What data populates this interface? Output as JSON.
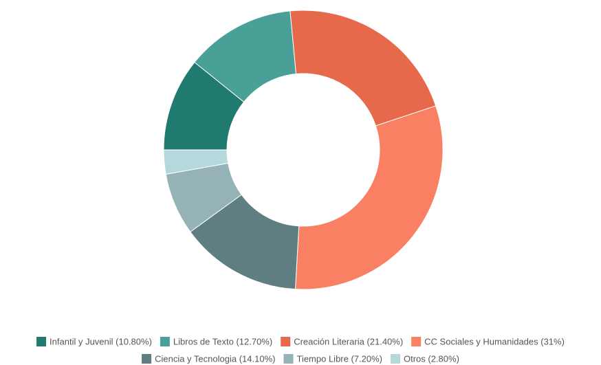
{
  "chart_data": {
    "type": "pie",
    "categories": [
      "Infantil y Juvenil (10.80%)",
      "Libros de Texto (12.70%)",
      "Creación Literaria (21.40%)",
      "CC Sociales y Humanidades (31%)",
      "Ciencia y Tecnologia (14.10%)",
      "Tiempo Libre (7.20%)",
      "Otros (2.80%)"
    ],
    "values": [
      10.8,
      12.7,
      21.4,
      31,
      14.1,
      7.2,
      2.8
    ],
    "colors": [
      "#217a6f",
      "#48a096",
      "#e5694a",
      "#fa8063",
      "#5f7e82",
      "#95b2b6",
      "#b5d8dd"
    ],
    "donut": true,
    "legend": "bottom"
  }
}
